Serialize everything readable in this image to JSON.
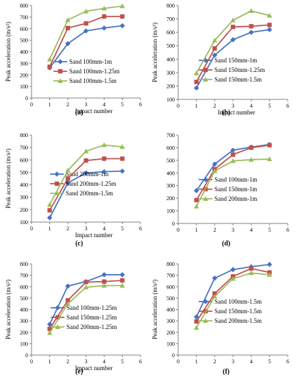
{
  "colors": {
    "blue": "#4472C4",
    "red": "#C0504D",
    "green": "#9BBB59"
  },
  "chart_data": [
    {
      "type": "line",
      "label": "(a)",
      "xlabel": "Impact number",
      "ylabel": "Peak acceleration (m/s²)",
      "xlim": [
        0,
        6
      ],
      "ylim": [
        0,
        800
      ],
      "xticks": [
        0,
        1,
        2,
        3,
        4,
        5,
        6
      ],
      "yticks": [
        0,
        100,
        200,
        300,
        400,
        500,
        600,
        700,
        800
      ],
      "grid": false,
      "legend": "bottom-right",
      "series": [
        {
          "name": "Sand 100mm-1m",
          "color": "blue",
          "marker": "diamond",
          "x": [
            1,
            2,
            3,
            4,
            5
          ],
          "y": [
            260,
            470,
            580,
            605,
            625
          ]
        },
        {
          "name": "Sand 100mm-1.25m",
          "color": "red",
          "marker": "square",
          "x": [
            1,
            2,
            3,
            4,
            5
          ],
          "y": [
            270,
            605,
            645,
            705,
            705
          ]
        },
        {
          "name": "Sand 100mm-1.5m",
          "color": "green",
          "marker": "triangle",
          "x": [
            1,
            2,
            3,
            4,
            5
          ],
          "y": [
            335,
            675,
            750,
            775,
            795
          ]
        }
      ]
    },
    {
      "type": "line",
      "label": "(b)",
      "xlabel": "Impact number",
      "ylabel": "Peak acceleration (m/s²)",
      "xlim": [
        0,
        6
      ],
      "ylim": [
        100,
        800
      ],
      "xticks": [
        0,
        1,
        2,
        3,
        4,
        5,
        6
      ],
      "yticks": [
        100,
        200,
        300,
        400,
        500,
        600,
        700,
        800
      ],
      "grid": false,
      "legend": "bottom-right",
      "series": [
        {
          "name": "Sand 150mm-1m",
          "color": "blue",
          "marker": "diamond",
          "x": [
            1,
            2,
            3,
            4,
            5
          ],
          "y": [
            185,
            430,
            545,
            600,
            620
          ]
        },
        {
          "name": "Sand 150mm-1.25m",
          "color": "red",
          "marker": "square",
          "x": [
            1,
            2,
            3,
            4,
            5
          ],
          "y": [
            230,
            480,
            640,
            645,
            655
          ]
        },
        {
          "name": "Sand 150mm-1.5m",
          "color": "green",
          "marker": "triangle",
          "x": [
            1,
            2,
            3,
            4,
            5
          ],
          "y": [
            295,
            540,
            690,
            760,
            725
          ]
        }
      ]
    },
    {
      "type": "line",
      "label": "(c)",
      "xlabel": "Impact number",
      "ylabel": "Peak acceleration (m/s²)",
      "xlim": [
        0,
        6
      ],
      "ylim": [
        100,
        800
      ],
      "xticks": [
        0,
        1,
        2,
        3,
        4,
        5,
        6
      ],
      "yticks": [
        100,
        200,
        300,
        400,
        500,
        600,
        700,
        800
      ],
      "grid": false,
      "legend": "bottom-right",
      "series": [
        {
          "name": "Sand 200mm-1m",
          "color": "blue",
          "marker": "diamond",
          "x": [
            1,
            2,
            3,
            4,
            5
          ],
          "y": [
            135,
            415,
            495,
            505,
            510
          ]
        },
        {
          "name": "Sand 200mm-1.25m",
          "color": "red",
          "marker": "square",
          "x": [
            1,
            2,
            3,
            4,
            5
          ],
          "y": [
            195,
            450,
            595,
            610,
            610
          ]
        },
        {
          "name": "Sand 200mm-1.5m",
          "color": "green",
          "marker": "triangle",
          "x": [
            1,
            2,
            3,
            4,
            5
          ],
          "y": [
            240,
            515,
            670,
            720,
            705
          ]
        }
      ]
    },
    {
      "type": "line",
      "label": "(d)",
      "xlabel": "",
      "ylabel": "",
      "xlim": [
        0,
        6
      ],
      "ylim": [
        0,
        700
      ],
      "xticks": [
        0,
        1,
        2,
        3,
        4,
        5,
        6
      ],
      "yticks": [
        0,
        100,
        200,
        300,
        400,
        500,
        600,
        700
      ],
      "grid": false,
      "legend": "bottom-right",
      "series": [
        {
          "name": "Sand 100mm-1m",
          "color": "blue",
          "marker": "diamond",
          "x": [
            1,
            2,
            3,
            4,
            5
          ],
          "y": [
            260,
            470,
            580,
            605,
            625
          ]
        },
        {
          "name": "Sand 150mm-1m",
          "color": "red",
          "marker": "square",
          "x": [
            1,
            2,
            3,
            4,
            5
          ],
          "y": [
            185,
            430,
            545,
            600,
            620
          ]
        },
        {
          "name": "Sand 200mm-1m",
          "color": "green",
          "marker": "triangle",
          "x": [
            1,
            2,
            3,
            4,
            5
          ],
          "y": [
            135,
            415,
            495,
            505,
            510
          ]
        }
      ]
    },
    {
      "type": "line",
      "label": "(e)",
      "xlabel": "Impact number",
      "ylabel": "Peak acceleration (m/s²)",
      "xlim": [
        0,
        6
      ],
      "ylim": [
        0,
        800
      ],
      "xticks": [
        0,
        1,
        2,
        3,
        4,
        5,
        6
      ],
      "yticks": [
        0,
        100,
        200,
        300,
        400,
        500,
        600,
        700,
        800
      ],
      "grid": false,
      "legend": "bottom-right",
      "series": [
        {
          "name": "Sand 100mm-1.25m",
          "color": "blue",
          "marker": "diamond",
          "x": [
            1,
            2,
            3,
            4,
            5
          ],
          "y": [
            270,
            605,
            645,
            705,
            705
          ]
        },
        {
          "name": "Sand 150mm-1.25m",
          "color": "red",
          "marker": "square",
          "x": [
            1,
            2,
            3,
            4,
            5
          ],
          "y": [
            230,
            480,
            640,
            645,
            655
          ]
        },
        {
          "name": "Sand 200mm-1.25m",
          "color": "green",
          "marker": "triangle",
          "x": [
            1,
            2,
            3,
            4,
            5
          ],
          "y": [
            195,
            450,
            595,
            610,
            610
          ]
        }
      ]
    },
    {
      "type": "line",
      "label": "(f)",
      "xlabel": "",
      "ylabel": "Peak acceleration (m/s²)",
      "xlim": [
        0,
        6
      ],
      "ylim": [
        0,
        800
      ],
      "xticks": [
        0,
        1,
        2,
        3,
        4,
        5,
        6
      ],
      "yticks": [
        0,
        100,
        200,
        300,
        400,
        500,
        600,
        700,
        800
      ],
      "grid": false,
      "legend": "bottom-right",
      "series": [
        {
          "name": "Sand 100mm-1.5m",
          "color": "blue",
          "marker": "diamond",
          "x": [
            1,
            2,
            3,
            4,
            5
          ],
          "y": [
            335,
            675,
            750,
            775,
            795
          ]
        },
        {
          "name": "Sand 150mm-1.5m",
          "color": "red",
          "marker": "square",
          "x": [
            1,
            2,
            3,
            4,
            5
          ],
          "y": [
            295,
            540,
            690,
            760,
            725
          ]
        },
        {
          "name": "Sand 200mm-1.5m",
          "color": "green",
          "marker": "triangle",
          "x": [
            1,
            2,
            3,
            4,
            5
          ],
          "y": [
            240,
            515,
            670,
            720,
            705
          ]
        }
      ]
    }
  ]
}
